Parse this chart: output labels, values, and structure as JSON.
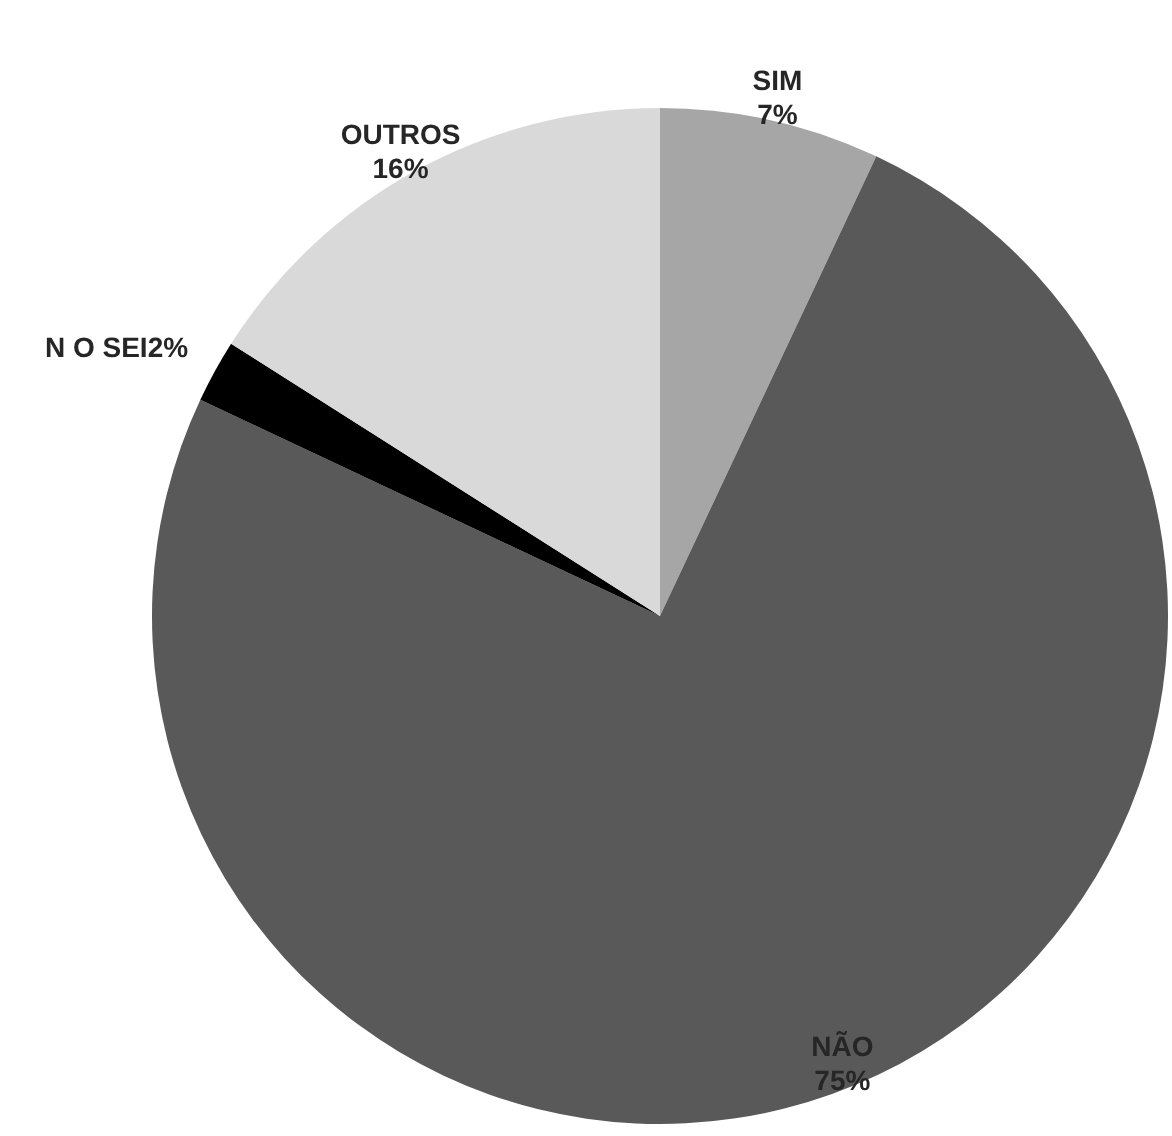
{
  "chart_data": {
    "type": "pie",
    "categories": [
      "SIM",
      "NÃO",
      "N O SEI",
      "OUTROS"
    ],
    "values": [
      7,
      75,
      2,
      16
    ],
    "value_labels": [
      "7%",
      "75%",
      "2%",
      "16%"
    ],
    "data_labels": true,
    "colors": [
      "#a6a6a6",
      "#595959",
      "#000000",
      "#d9d9d9"
    ]
  }
}
